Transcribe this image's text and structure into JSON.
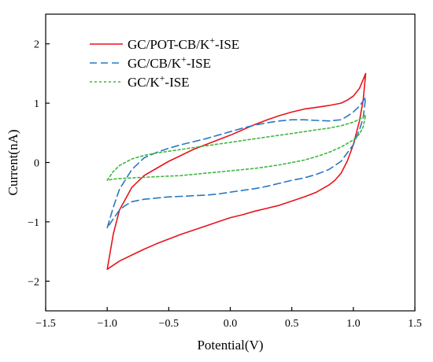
{
  "chart_data": {
    "type": "line",
    "title": "",
    "xlabel": "Potential(V)",
    "ylabel": "Current(nA)",
    "xlim": [
      -1.5,
      1.5
    ],
    "ylim": [
      -2.5,
      2.5
    ],
    "xticks": [
      -1.5,
      -1.0,
      -0.5,
      0.0,
      0.5,
      1.0,
      1.5
    ],
    "xtick_labels": [
      "−1.5",
      "−1.0",
      "−0.5",
      "0.0",
      "0.5",
      "1.0",
      "1.5"
    ],
    "yticks": [
      -2,
      -1,
      0,
      1,
      2
    ],
    "ytick_labels": [
      "−2",
      "−1",
      "0",
      "1",
      "2"
    ],
    "grid": false,
    "legend_position": "top-left",
    "series": [
      {
        "name_parts": [
          "GC/POT-CB/K",
          "+",
          "-ISE"
        ],
        "color": "#e8141b",
        "style": "solid",
        "x": [
          -1.0,
          -0.95,
          -0.9,
          -0.8,
          -0.7,
          -0.6,
          -0.5,
          -0.4,
          -0.3,
          -0.2,
          -0.1,
          0.0,
          0.1,
          0.2,
          0.3,
          0.4,
          0.5,
          0.6,
          0.7,
          0.8,
          0.85,
          0.9,
          0.95,
          1.0,
          1.05,
          1.1,
          1.08,
          1.05,
          1.0,
          0.95,
          0.9,
          0.85,
          0.8,
          0.7,
          0.6,
          0.5,
          0.4,
          0.3,
          0.2,
          0.1,
          0.0,
          -0.1,
          -0.2,
          -0.3,
          -0.4,
          -0.5,
          -0.6,
          -0.7,
          -0.8,
          -0.9,
          -0.95,
          -1.0
        ],
        "y": [
          -1.8,
          -1.2,
          -0.8,
          -0.42,
          -0.22,
          -0.1,
          0.02,
          0.12,
          0.22,
          0.3,
          0.38,
          0.46,
          0.55,
          0.64,
          0.72,
          0.79,
          0.85,
          0.9,
          0.93,
          0.96,
          0.98,
          1.0,
          1.05,
          1.12,
          1.25,
          1.5,
          1.05,
          0.7,
          0.3,
          0.02,
          -0.18,
          -0.3,
          -0.38,
          -0.5,
          -0.58,
          -0.65,
          -0.72,
          -0.77,
          -0.82,
          -0.88,
          -0.93,
          -1.0,
          -1.07,
          -1.14,
          -1.21,
          -1.29,
          -1.37,
          -1.46,
          -1.56,
          -1.66,
          -1.73,
          -1.8
        ]
      },
      {
        "name_parts": [
          "GC/CB/K",
          "+",
          "-ISE"
        ],
        "color": "#2a78c2",
        "style": "dashed",
        "x": [
          -1.0,
          -0.95,
          -0.9,
          -0.8,
          -0.7,
          -0.6,
          -0.5,
          -0.4,
          -0.3,
          -0.2,
          -0.1,
          0.0,
          0.1,
          0.2,
          0.3,
          0.4,
          0.5,
          0.6,
          0.7,
          0.8,
          0.9,
          0.95,
          1.0,
          1.05,
          1.1,
          1.08,
          1.05,
          1.0,
          0.9,
          0.8,
          0.7,
          0.6,
          0.5,
          0.4,
          0.3,
          0.2,
          0.1,
          0.0,
          -0.1,
          -0.2,
          -0.3,
          -0.4,
          -0.5,
          -0.6,
          -0.7,
          -0.8,
          -0.85,
          -0.9,
          -0.95,
          -1.0
        ],
        "y": [
          -1.1,
          -0.75,
          -0.45,
          -0.12,
          0.08,
          0.17,
          0.24,
          0.3,
          0.35,
          0.4,
          0.46,
          0.52,
          0.58,
          0.63,
          0.67,
          0.7,
          0.72,
          0.72,
          0.71,
          0.7,
          0.72,
          0.78,
          0.85,
          0.95,
          1.1,
          0.75,
          0.55,
          0.3,
          0.02,
          -0.12,
          -0.2,
          -0.26,
          -0.3,
          -0.35,
          -0.4,
          -0.44,
          -0.47,
          -0.5,
          -0.53,
          -0.55,
          -0.56,
          -0.57,
          -0.58,
          -0.6,
          -0.62,
          -0.66,
          -0.72,
          -0.8,
          -0.95,
          -1.1
        ]
      },
      {
        "name_parts": [
          "GC/K",
          "+",
          "-ISE"
        ],
        "color": "#3cb93c",
        "style": "dotted",
        "x": [
          -1.0,
          -0.95,
          -0.9,
          -0.8,
          -0.7,
          -0.6,
          -0.5,
          -0.4,
          -0.3,
          -0.2,
          -0.1,
          0.0,
          0.1,
          0.2,
          0.3,
          0.4,
          0.5,
          0.6,
          0.7,
          0.8,
          0.9,
          1.0,
          1.05,
          1.1,
          1.08,
          1.05,
          1.0,
          0.9,
          0.8,
          0.7,
          0.6,
          0.5,
          0.4,
          0.3,
          0.2,
          0.1,
          0.0,
          -0.1,
          -0.2,
          -0.3,
          -0.4,
          -0.5,
          -0.6,
          -0.7,
          -0.8,
          -0.9,
          -0.95,
          -1.0
        ],
        "y": [
          -0.3,
          -0.15,
          -0.05,
          0.06,
          0.12,
          0.16,
          0.19,
          0.22,
          0.25,
          0.28,
          0.31,
          0.34,
          0.37,
          0.4,
          0.43,
          0.46,
          0.49,
          0.52,
          0.55,
          0.58,
          0.62,
          0.68,
          0.73,
          0.8,
          0.6,
          0.48,
          0.38,
          0.26,
          0.17,
          0.1,
          0.04,
          0.0,
          -0.04,
          -0.07,
          -0.1,
          -0.12,
          -0.14,
          -0.16,
          -0.18,
          -0.2,
          -0.22,
          -0.23,
          -0.24,
          -0.25,
          -0.26,
          -0.27,
          -0.28,
          -0.3
        ]
      }
    ]
  }
}
